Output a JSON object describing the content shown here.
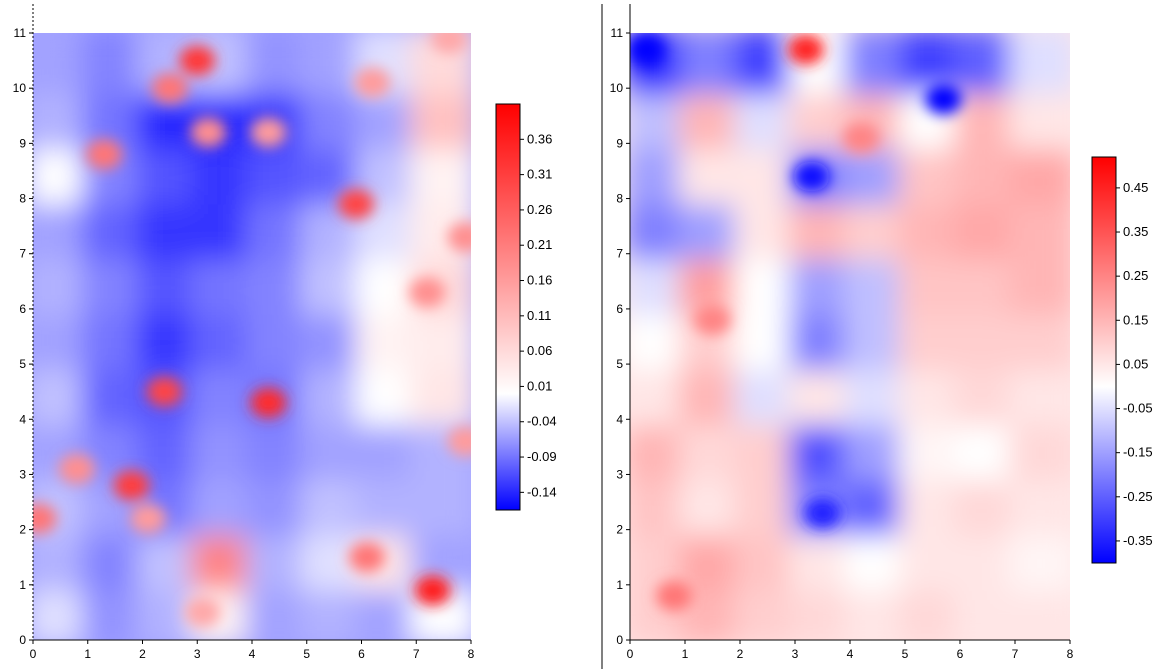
{
  "chart_data": [
    {
      "type": "heatmap",
      "title": "",
      "xlabel": "",
      "ylabel": "",
      "xlim": [
        0,
        8
      ],
      "ylim": [
        0,
        11
      ],
      "x_ticks": [
        "0",
        "1",
        "2",
        "3",
        "4",
        "5",
        "6",
        "7",
        "8"
      ],
      "y_ticks": [
        "0",
        "1",
        "2",
        "3",
        "4",
        "5",
        "6",
        "7",
        "8",
        "9",
        "10",
        "11"
      ],
      "colormap": [
        "#0000ff",
        "#ffffff",
        "#ff0000"
      ],
      "colorbar": {
        "min": -0.165,
        "max": 0.41,
        "ticks": [
          "0.36",
          "0.31",
          "0.26",
          "0.21",
          "0.16",
          "0.11",
          "0.06",
          "0.01",
          "-0.04",
          "-0.09",
          "-0.14"
        ],
        "tick_values": [
          0.36,
          0.31,
          0.26,
          0.21,
          0.16,
          0.11,
          0.06,
          0.01,
          -0.04,
          -0.09,
          -0.14
        ]
      },
      "background_value": -0.06,
      "grid_cols": 8,
      "grid_rows": 11,
      "approx_values": [
        [
          -0.02,
          -0.07,
          -0.05,
          0.02,
          -0.06,
          -0.05,
          -0.06,
          0.0
        ],
        [
          -0.05,
          -0.08,
          -0.04,
          0.2,
          -0.05,
          -0.02,
          0.04,
          -0.06
        ],
        [
          -0.04,
          -0.06,
          -0.09,
          -0.06,
          -0.07,
          -0.04,
          -0.05,
          -0.05
        ],
        [
          -0.06,
          -0.08,
          -0.1,
          -0.07,
          -0.08,
          -0.06,
          -0.06,
          -0.05
        ],
        [
          -0.04,
          -0.1,
          -0.11,
          -0.08,
          -0.09,
          -0.05,
          0.0,
          0.04
        ],
        [
          -0.06,
          -0.09,
          -0.13,
          -0.1,
          -0.08,
          -0.07,
          0.02,
          0.03
        ],
        [
          -0.05,
          -0.08,
          -0.11,
          -0.09,
          -0.08,
          -0.04,
          0.0,
          0.06
        ],
        [
          -0.06,
          -0.1,
          -0.13,
          -0.13,
          -0.09,
          -0.05,
          -0.02,
          0.03
        ],
        [
          0.0,
          -0.08,
          -0.11,
          -0.13,
          -0.11,
          -0.1,
          -0.04,
          0.02
        ],
        [
          -0.05,
          -0.09,
          -0.14,
          -0.14,
          -0.13,
          -0.08,
          -0.06,
          0.1
        ],
        [
          -0.06,
          -0.08,
          -0.05,
          -0.04,
          -0.07,
          -0.06,
          -0.02,
          0.06
        ]
      ],
      "hotspots": [
        {
          "x": 3.0,
          "y": 10.5,
          "value": 0.32
        },
        {
          "x": 2.5,
          "y": 10.0,
          "value": 0.22
        },
        {
          "x": 5.9,
          "y": 7.9,
          "value": 0.3
        },
        {
          "x": 4.3,
          "y": 4.3,
          "value": 0.34
        },
        {
          "x": 2.4,
          "y": 4.5,
          "value": 0.3
        },
        {
          "x": 1.8,
          "y": 2.8,
          "value": 0.31
        },
        {
          "x": 7.3,
          "y": 0.9,
          "value": 0.36
        },
        {
          "x": 1.3,
          "y": 8.8,
          "value": 0.22
        },
        {
          "x": 0.1,
          "y": 2.2,
          "value": 0.22
        },
        {
          "x": 0.8,
          "y": 3.1,
          "value": 0.18
        },
        {
          "x": 3.2,
          "y": 9.2,
          "value": 0.18
        },
        {
          "x": 4.3,
          "y": 9.2,
          "value": 0.16
        },
        {
          "x": 6.1,
          "y": 1.5,
          "value": 0.22
        },
        {
          "x": 2.1,
          "y": 2.2,
          "value": 0.16
        },
        {
          "x": 7.2,
          "y": 6.3,
          "value": 0.18
        },
        {
          "x": 7.9,
          "y": 3.6,
          "value": 0.16
        },
        {
          "x": 7.9,
          "y": 7.3,
          "value": 0.18
        },
        {
          "x": 6.2,
          "y": 10.1,
          "value": 0.16
        },
        {
          "x": 7.6,
          "y": 10.9,
          "value": 0.14
        },
        {
          "x": 3.1,
          "y": 0.5,
          "value": 0.14
        }
      ]
    },
    {
      "type": "heatmap",
      "title": "",
      "xlabel": "",
      "ylabel": "",
      "xlim": [
        0,
        8
      ],
      "ylim": [
        0,
        11
      ],
      "x_ticks": [
        "0",
        "1",
        "2",
        "3",
        "4",
        "5",
        "6",
        "7",
        "8"
      ],
      "y_ticks": [
        "0",
        "1",
        "2",
        "3",
        "4",
        "5",
        "6",
        "7",
        "8",
        "9",
        "10",
        "11"
      ],
      "colormap": [
        "#0000ff",
        "#ffffff",
        "#ff0000"
      ],
      "colorbar": {
        "min": -0.4,
        "max": 0.52,
        "ticks": [
          "0.45",
          "0.35",
          "0.25",
          "0.15",
          "0.05",
          "-0.05",
          "-0.15",
          "-0.25",
          "-0.35"
        ],
        "tick_values": [
          0.45,
          0.35,
          0.25,
          0.15,
          0.05,
          -0.05,
          -0.15,
          -0.25,
          -0.35
        ]
      },
      "background_value": 0.05,
      "grid_cols": 8,
      "grid_rows": 11,
      "approx_values": [
        [
          0.1,
          0.15,
          0.1,
          0.08,
          0.05,
          0.08,
          0.05,
          0.05
        ],
        [
          0.1,
          0.18,
          0.12,
          0.05,
          0.0,
          0.05,
          0.05,
          0.02
        ],
        [
          0.12,
          0.05,
          0.1,
          -0.2,
          -0.25,
          0.05,
          0.08,
          0.05
        ],
        [
          0.15,
          0.08,
          0.1,
          -0.28,
          -0.15,
          0.02,
          0.0,
          0.08
        ],
        [
          0.05,
          0.15,
          -0.05,
          0.05,
          -0.05,
          0.05,
          0.08,
          0.05
        ],
        [
          0.0,
          0.1,
          0.0,
          -0.2,
          -0.1,
          0.1,
          0.1,
          0.1
        ],
        [
          -0.05,
          0.2,
          0.0,
          -0.15,
          -0.1,
          0.12,
          0.12,
          0.15
        ],
        [
          -0.2,
          -0.15,
          0.05,
          0.15,
          0.1,
          0.15,
          0.18,
          0.15
        ],
        [
          -0.15,
          0.05,
          0.05,
          -0.2,
          -0.15,
          0.12,
          0.15,
          0.18
        ],
        [
          -0.1,
          0.15,
          -0.05,
          0.1,
          0.15,
          0.0,
          0.15,
          0.05
        ],
        [
          -0.35,
          -0.2,
          -0.3,
          0.0,
          -0.2,
          -0.3,
          -0.25,
          -0.05
        ]
      ],
      "hotspots": [
        {
          "x": 3.2,
          "y": 10.7,
          "value": 0.45
        },
        {
          "x": 3.3,
          "y": 8.4,
          "value": -0.38
        },
        {
          "x": 3.5,
          "y": 2.3,
          "value": -0.35
        },
        {
          "x": 1.5,
          "y": 5.8,
          "value": 0.25
        },
        {
          "x": 0.8,
          "y": 0.8,
          "value": 0.28
        },
        {
          "x": 4.2,
          "y": 9.1,
          "value": 0.25
        },
        {
          "x": 0.3,
          "y": 10.7,
          "value": -0.4
        },
        {
          "x": 5.7,
          "y": 9.8,
          "value": -0.4
        }
      ]
    }
  ]
}
